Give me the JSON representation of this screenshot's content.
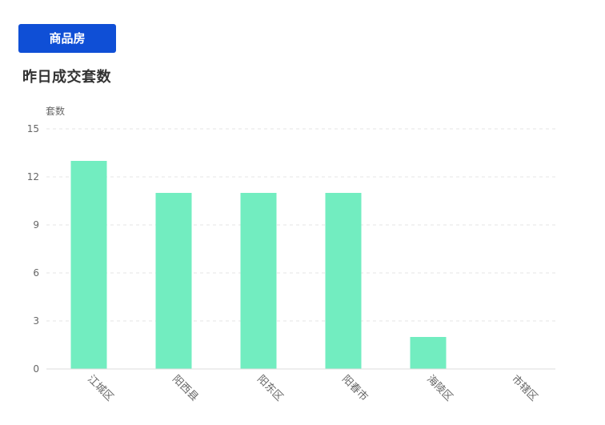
{
  "tab": {
    "label": "商品房"
  },
  "chart_data": {
    "type": "bar",
    "title": "昨日成交套数",
    "ylabel": "套数",
    "xlabel": "",
    "categories": [
      "江城区",
      "阳西县",
      "阳东区",
      "阳春市",
      "海陵区",
      "市辖区"
    ],
    "values": [
      13,
      11,
      11,
      11,
      2,
      0
    ],
    "ylim": [
      0,
      15
    ],
    "yticks": [
      0,
      3,
      6,
      9,
      12,
      15
    ],
    "grid": true,
    "bar_color": "#72edc0",
    "grid_color": "#e6e6e6",
    "axis_color": "#dddddd"
  }
}
